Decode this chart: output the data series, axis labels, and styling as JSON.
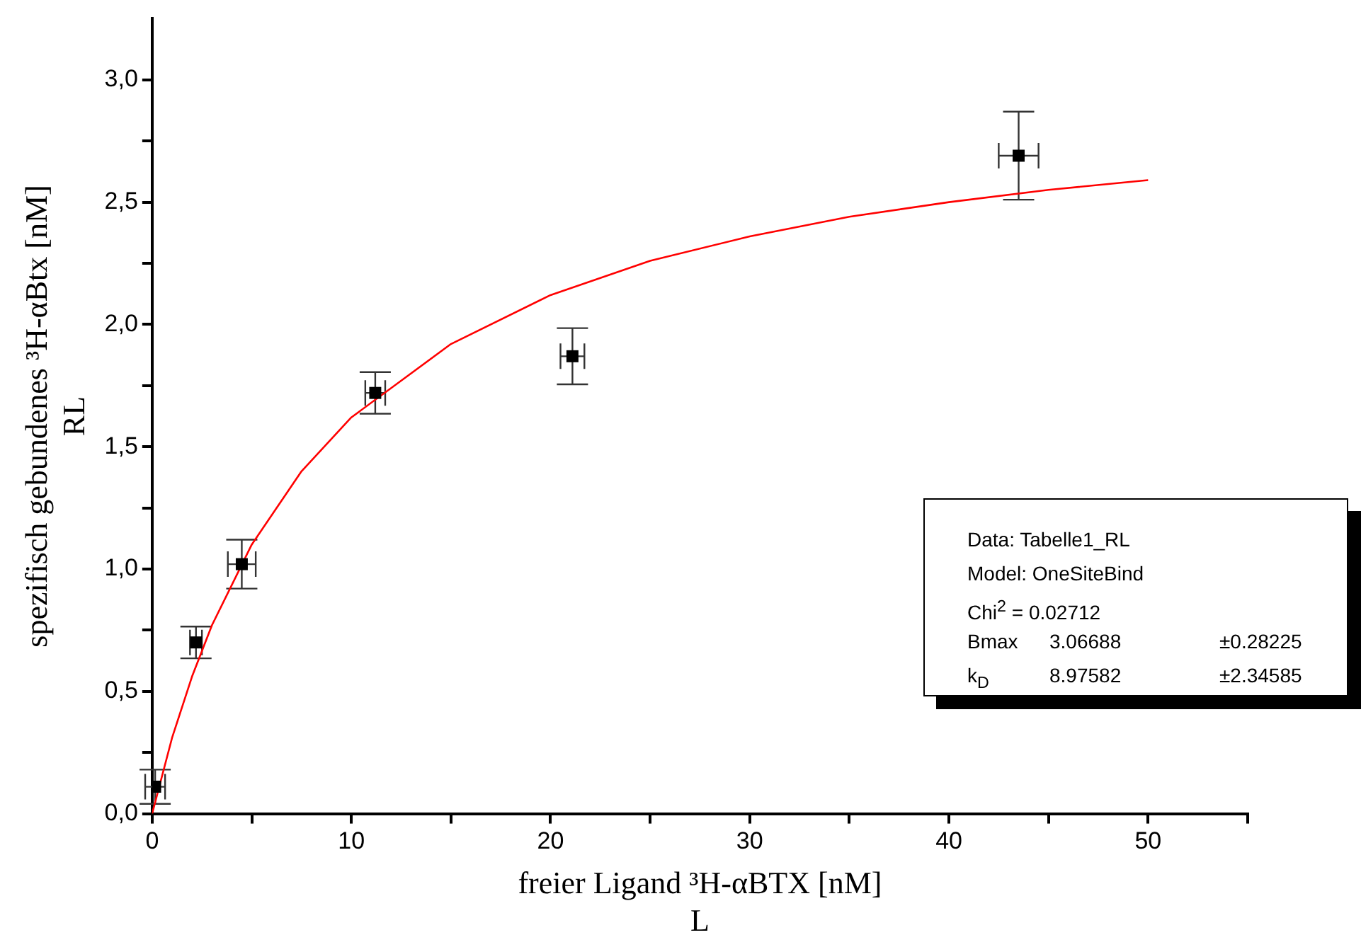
{
  "chart_data": {
    "type": "scatter",
    "xlabel": "freier Ligand ³H-αBTX [nM]\nL",
    "ylabel": "spezifisch gebundenes ³H-αBtx [nM]\nRL",
    "xlim": [
      0,
      55
    ],
    "xticks": [
      0,
      {
        "value": 5,
        "label": null
      },
      10,
      {
        "value": 15,
        "label": null
      },
      20,
      {
        "value": 25,
        "label": null
      },
      30,
      {
        "value": 35,
        "label": null
      },
      40,
      {
        "value": 45,
        "label": null
      },
      50,
      {
        "value": 55,
        "label": null
      }
    ],
    "ylim": [
      0,
      3.25
    ],
    "yticks": [
      {
        "value": 0,
        "label": "0,0"
      },
      {
        "value": 0.25,
        "label": null
      },
      {
        "value": 0.5,
        "label": "0,5"
      },
      {
        "value": 0.75,
        "label": null
      },
      {
        "value": 1,
        "label": "1,0"
      },
      {
        "value": 1.25,
        "label": null
      },
      {
        "value": 1.5,
        "label": "1,5"
      },
      {
        "value": 1.75,
        "label": null
      },
      {
        "value": 2,
        "label": "2,0"
      },
      {
        "value": 2.25,
        "label": null
      },
      {
        "value": 2.5,
        "label": "2,5"
      },
      {
        "value": 2.75,
        "label": null
      },
      {
        "value": 3,
        "label": "3,0"
      }
    ],
    "grid": false,
    "legend": false,
    "marker": "square",
    "series": [
      {
        "color": "#000000",
        "x": [
          0.15,
          2.2,
          4.5,
          11.2,
          21.1,
          43.5
        ],
        "values": [
          0.11,
          0.7,
          1.02,
          1.72,
          1.87,
          2.69
        ],
        "errors": [
          0.07,
          0.065,
          0.1,
          0.085,
          0.115,
          0.18
        ],
        "xerrors": [
          0.5,
          0.3,
          0.7,
          0.5,
          0.6,
          1.0
        ]
      },
      {
        "type": "line",
        "color": "#ff0000",
        "marker": "none",
        "x": [
          0,
          1,
          2,
          3,
          5,
          7.5,
          10,
          15,
          20,
          25,
          30,
          35,
          40,
          45,
          50
        ],
        "values": [
          0,
          0.31,
          0.56,
          0.77,
          1.1,
          1.4,
          1.62,
          1.92,
          2.12,
          2.26,
          2.36,
          2.44,
          2.5,
          2.55,
          2.59
        ]
      }
    ],
    "annotations": [
      "Data: Tabelle1_RL",
      "Model: OneSiteBind",
      "Chi$^{2}$ = 0.02712",
      "Bmax\t3.06688\t±0.28225",
      "k$_{D}$\t8.97582\t±2.34585"
    ]
  }
}
